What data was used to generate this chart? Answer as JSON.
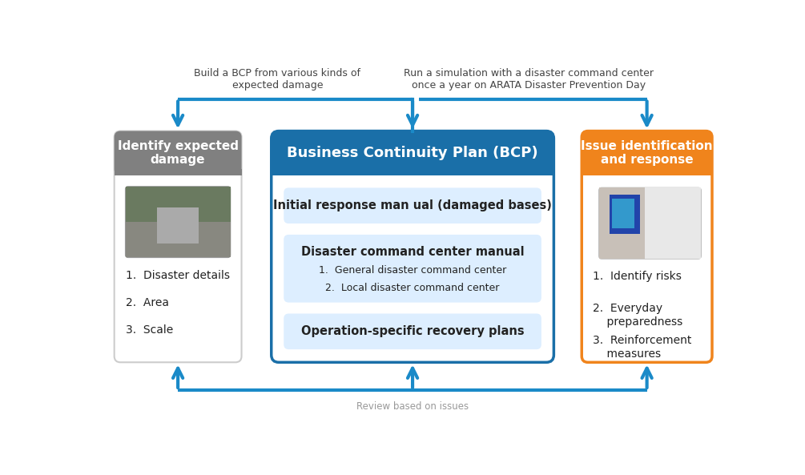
{
  "bg_color": "#ffffff",
  "fig_bg": "#ffffff",
  "top_text_left": "Build a BCP from various kinds of\nexpected damage",
  "top_text_right": "Run a simulation with a disaster command center\nonce a year on ARATA Disaster Prevention Day",
  "bottom_text": "Review based on issues",
  "box1_header": "Identify expected\ndamage",
  "box1_header_bg": "#808080",
  "box1_bg": "#ffffff",
  "box1_border": "#aaaaaa",
  "box1_items": [
    "1.  Disaster details",
    "2.  Area",
    "3.  Scale"
  ],
  "box2_header": "Business Continuity Plan (BCP)",
  "box2_header_bg": "#1a6fa8",
  "box2_bg": "#ffffff",
  "box2_border": "#1a6fa8",
  "box2_sub1_title": "Initial response man ual (damaged bases)",
  "box2_sub2_title": "Disaster command center manual",
  "box2_sub2_items": [
    "1.  General disaster command center",
    "2.  Local disaster command center"
  ],
  "box2_sub3_title": "Operation-specific recovery plans",
  "box2_sub_bg": "#ddeeff",
  "box3_header": "Issue identification\nand response",
  "box3_header_bg": "#f0841c",
  "box3_bg": "#ffffff",
  "box3_border": "#f0841c",
  "box3_items": [
    "1.  Identify risks",
    "2.  Everyday\n    preparedness",
    "3.  Reinforcement\n    measures"
  ],
  "arrow_color": "#1a8ac8",
  "text_color_dark": "#222222",
  "text_color_gray": "#999999",
  "top_text_color": "#444444"
}
